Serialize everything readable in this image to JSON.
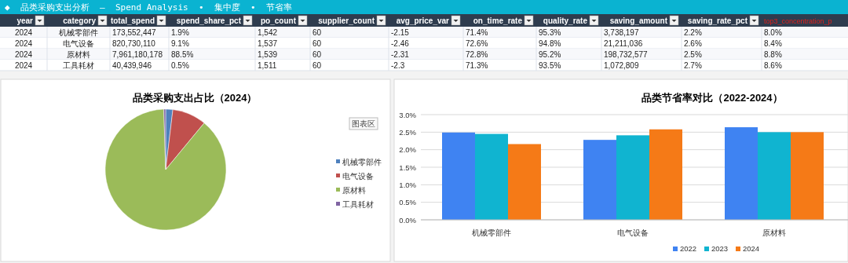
{
  "chart_data": [
    {
      "type": "other",
      "title": "◆  品类采购支出分析  —  Spend Analysis  •  集中度  •  节省率",
      "categories": [
        "year",
        "category",
        "total_spend",
        "spend_share_pct",
        "po_count",
        "supplier_count",
        "avg_price_var",
        "on_time_rate",
        "quality_rate",
        "saving_amount",
        "saving_rate_pct",
        "top3_concentration_p"
      ],
      "cells": [
        [
          "2024",
          "机械零部件",
          "173,552,447",
          "1.9%",
          "1,542",
          "60",
          "-2.15",
          "71.4%",
          "95.3%",
          "3,738,197",
          "2.2%",
          "8.0%"
        ],
        [
          "2024",
          "电气设备",
          "820,730,110",
          "9.1%",
          "1,537",
          "60",
          "-2.46",
          "72.6%",
          "94.8%",
          "21,211,036",
          "2.6%",
          "8.4%"
        ],
        [
          "2024",
          "原材料",
          "7,961,180,178",
          "88.5%",
          "1,539",
          "60",
          "-2.31",
          "72.8%",
          "95.2%",
          "198,732,577",
          "2.5%",
          "8.8%"
        ],
        [
          "2024",
          "工具耗材",
          "40,439,946",
          "0.5%",
          "1,511",
          "60",
          "-2.3",
          "71.3%",
          "93.5%",
          "1,072,809",
          "2.7%",
          "8.6%"
        ]
      ]
    },
    {
      "type": "pie",
      "title": "品类采购支出占比（2024）",
      "categories": [
        "机械零部件",
        "电气设备",
        "原材料",
        "工具耗材"
      ],
      "values": [
        1.9,
        9.1,
        88.5,
        0.5
      ],
      "colors": [
        "#4f81bd",
        "#c0504d",
        "#9bbb59",
        "#8064a2"
      ],
      "legend": "right",
      "annotations": [
        "图表区"
      ]
    },
    {
      "type": "bar",
      "title": "品类节省率对比（2022-2024）",
      "categories": [
        "机械零部件",
        "电气设备",
        "原材料"
      ],
      "series": [
        {
          "name": "2022",
          "color": "#3f83f2",
          "values": [
            2.49,
            2.28,
            2.64
          ]
        },
        {
          "name": "2023",
          "color": "#10b4d0",
          "values": [
            2.45,
            2.41,
            2.5
          ]
        },
        {
          "name": "2024",
          "color": "#f57a17",
          "values": [
            2.16,
            2.58,
            2.5
          ]
        }
      ],
      "ylim": [
        0,
        3
      ],
      "yticks": [
        {
          "value": 0,
          "label": "0.0%"
        },
        {
          "value": 0.5,
          "label": "0.5%"
        },
        {
          "value": 1,
          "label": "1.0%"
        },
        {
          "value": 1.5,
          "label": "1.5%"
        },
        {
          "value": 2,
          "label": "2.0%"
        },
        {
          "value": 2.5,
          "label": "2.5%"
        },
        {
          "value": 3,
          "label": "3.0%"
        }
      ],
      "grid": "y",
      "legend": "bottom"
    }
  ]
}
